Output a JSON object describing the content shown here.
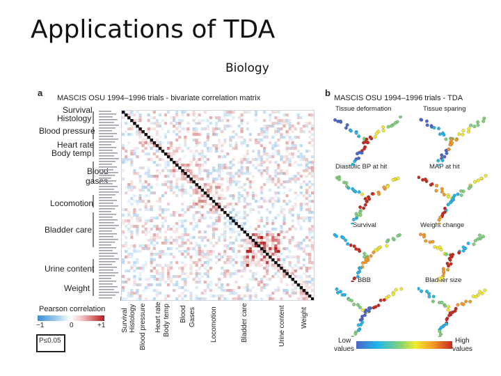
{
  "slide": {
    "title": "Applications of TDA",
    "subtitle": "Biology"
  },
  "panel_a": {
    "letter": "a",
    "title": "MASCIS OSU 1994–1996 trials - bivariate correlation matrix",
    "row_groups": [
      "Survival",
      "Histology",
      "Blood pressure",
      "Heart rate",
      "Body temp",
      "Blood",
      "gases",
      "Locomotion",
      "Bladder care",
      "Urine content",
      "Weight"
    ],
    "col_groups": [
      "Survival",
      "Histology",
      "Blood pressure",
      "Heart rate",
      "Body temp",
      "Blood",
      "Gases",
      "Locomotion",
      "Bladder care",
      "Urine content",
      "Weight"
    ],
    "legend_title": "Pearson correlation",
    "legend_ticks": [
      "−1",
      "0",
      "+1"
    ],
    "p_label": "P≤0.05",
    "colors": {
      "negative": "#3b8fd1",
      "positive": "#b31b1b",
      "diagonal": "#111111"
    }
  },
  "panel_b": {
    "letter": "b",
    "title": "MASCIS OSU 1994–1996 trials - TDA",
    "maps": [
      "Tissue deformation",
      "Tissue sparing",
      "Diastolic BP at hit",
      "MAP at hit",
      "Survival",
      "Weight change",
      "BBB",
      "Bladder size"
    ],
    "legend_low": [
      "Low",
      "values"
    ],
    "legend_high": [
      "High",
      "values"
    ]
  }
}
